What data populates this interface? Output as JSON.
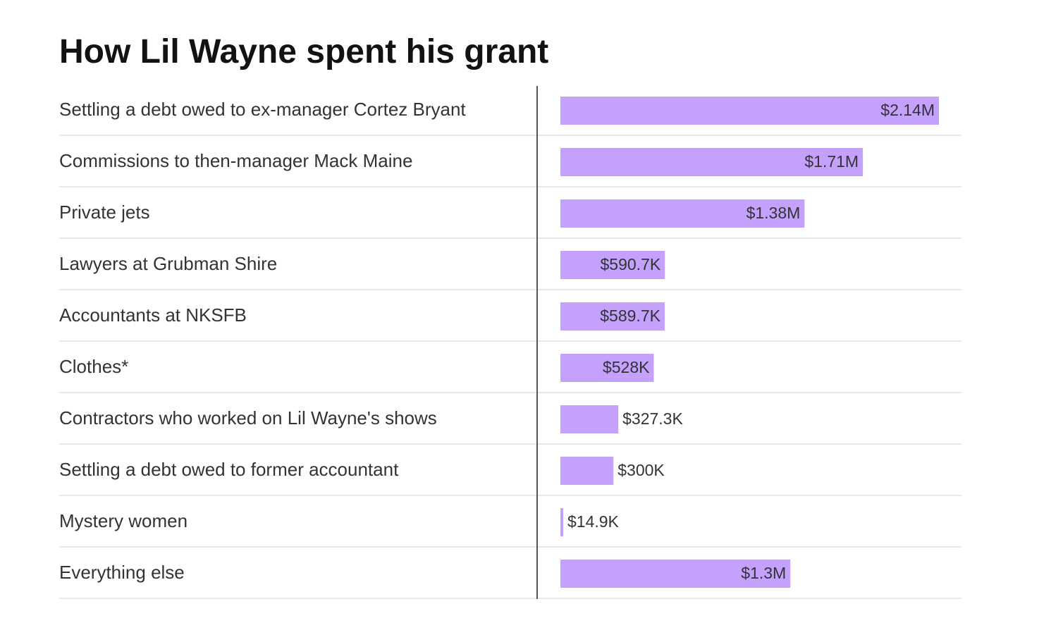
{
  "chart_data": {
    "type": "bar",
    "orientation": "horizontal",
    "title": "How Lil Wayne spent his grant",
    "categories": [
      "Settling a debt owed to ex-manager Cortez Bryant",
      "Commissions to then-manager Mack Maine",
      "Private jets",
      "Lawyers at Grubman Shire",
      "Accountants at NKSFB",
      "Clothes*",
      "Contractors who worked on Lil Wayne's shows",
      "Settling a debt owed to former accountant",
      "Mystery women",
      "Everything else"
    ],
    "values": [
      2140000,
      1710000,
      1380000,
      590700,
      589700,
      528000,
      327300,
      300000,
      14900,
      1300000
    ],
    "value_labels": [
      "$2.14M",
      "$1.71M",
      "$1.38M",
      "$590.7K",
      "$589.7K",
      "$528K",
      "$327.3K",
      "$300K",
      "$14.9K",
      "$1.3M"
    ],
    "xlim": [
      0,
      2140000
    ],
    "grid": false,
    "legend": "none",
    "colors": {
      "bar": "#c4a1fd",
      "divider": "#e3e9ee",
      "axis": "#555555",
      "text": "#333333",
      "title": "#121212"
    }
  }
}
